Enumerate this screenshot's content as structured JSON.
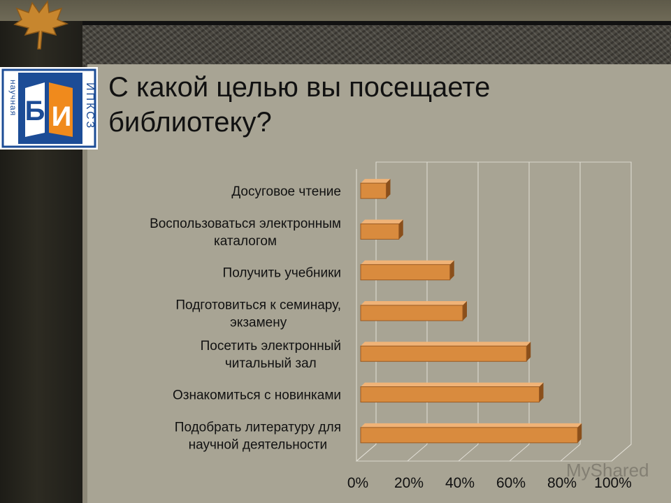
{
  "slide": {
    "title": "С какой целью вы посещаете\nбиблиотеку?",
    "logo": {
      "letters_left": "Б",
      "letters_right": "И",
      "vertical_left": "научная",
      "vertical_right": "ИПКСЗ"
    },
    "watermark": "MyShared"
  },
  "colors": {
    "bar": "#d98b3e",
    "bar_top": "#f0b377",
    "bar_side": "#8a4f1b",
    "slide_bg": "#a8a494",
    "logo_blue": "#1c4c96",
    "logo_orange": "#f08a1c"
  },
  "chart_data": {
    "type": "bar",
    "orientation": "horizontal",
    "categories": [
      "Досуговое чтение",
      "Воспользоваться электронным\nкаталогом",
      "Получить учебники",
      "Подготовиться к семинару,\nэкзамену",
      "Посетить электронный\nчитальный зал",
      "Ознакомиться с новинками",
      "Подобрать литературу для\nнаучной деятельности"
    ],
    "values": [
      10,
      15,
      35,
      40,
      65,
      70,
      85
    ],
    "xlim": [
      0,
      100
    ],
    "xticks": [
      "0%",
      "20%",
      "40%",
      "60%",
      "80%",
      "100%"
    ],
    "grid": true,
    "legend": "none"
  }
}
